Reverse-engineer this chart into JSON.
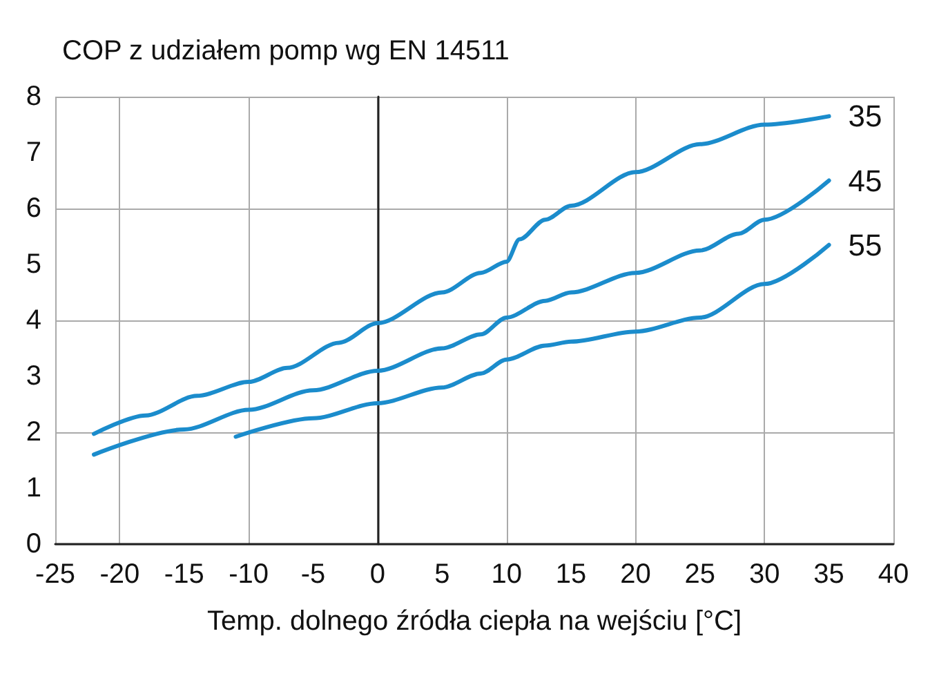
{
  "chart_data": {
    "type": "line",
    "title": "COP z udziałem pomp wg EN 14511",
    "xlabel": "Temp. dolnego źródła ciepła na wejściu [°C]",
    "xlim": [
      -25,
      40
    ],
    "xticks": [
      -25,
      -20,
      -15,
      -10,
      -5,
      0,
      5,
      10,
      15,
      20,
      25,
      30,
      35,
      40
    ],
    "ylim": [
      0,
      8
    ],
    "yticks": [
      0,
      1,
      2,
      3,
      4,
      5,
      6,
      7,
      8
    ],
    "grid": true,
    "marker": "none",
    "line_style": "solid",
    "legend": false,
    "series": [
      {
        "name": "35",
        "color": "#1b8ccc",
        "x": [
          -22,
          -18,
          -14,
          -10,
          -7,
          -3,
          0,
          5,
          8,
          10,
          11,
          13,
          15,
          20,
          25,
          30,
          35
        ],
        "values": [
          1.97,
          2.3,
          2.65,
          2.9,
          3.15,
          3.6,
          3.95,
          4.5,
          4.85,
          5.05,
          5.45,
          5.8,
          6.05,
          6.65,
          7.15,
          7.5,
          7.65
        ]
      },
      {
        "name": "45",
        "color": "#1b8ccc",
        "x": [
          -22,
          -15,
          -10,
          -5,
          0,
          5,
          8,
          10,
          13,
          15,
          20,
          25,
          28,
          30,
          35
        ],
        "values": [
          1.6,
          2.05,
          2.4,
          2.75,
          3.1,
          3.5,
          3.75,
          4.05,
          4.35,
          4.5,
          4.85,
          5.25,
          5.55,
          5.8,
          6.5
        ]
      },
      {
        "name": "55",
        "color": "#1b8ccc",
        "x": [
          -11,
          -5,
          0,
          5,
          8,
          10,
          13,
          15,
          20,
          25,
          30,
          35
        ],
        "values": [
          1.92,
          2.25,
          2.52,
          2.8,
          3.05,
          3.3,
          3.55,
          3.62,
          3.8,
          4.05,
          4.65,
          5.35
        ]
      }
    ]
  }
}
